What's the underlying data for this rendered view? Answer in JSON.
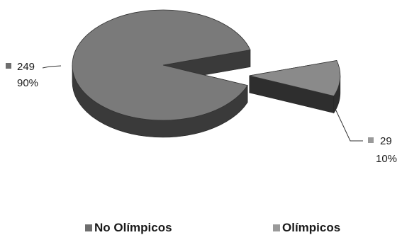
{
  "chart_data": {
    "type": "pie",
    "style": "3d-exploded",
    "slices": [
      {
        "name": "No Olímpicos",
        "value": 249,
        "percent_label": "90%",
        "value_label": "249",
        "color": "#7a7a7a",
        "side_color": "#3a3a3a"
      },
      {
        "name": "Olímpicos",
        "value": 29,
        "percent_label": "10%",
        "value_label": "29",
        "color": "#8a8a8a",
        "side_color": "#2e2e2e"
      }
    ],
    "legend": {
      "position": "bottom",
      "items": [
        "No Olímpicos",
        "Olímpicos"
      ]
    },
    "colors": {
      "legend_swatch_1": "#6e6e6e",
      "legend_swatch_2": "#9a9a9a"
    }
  }
}
